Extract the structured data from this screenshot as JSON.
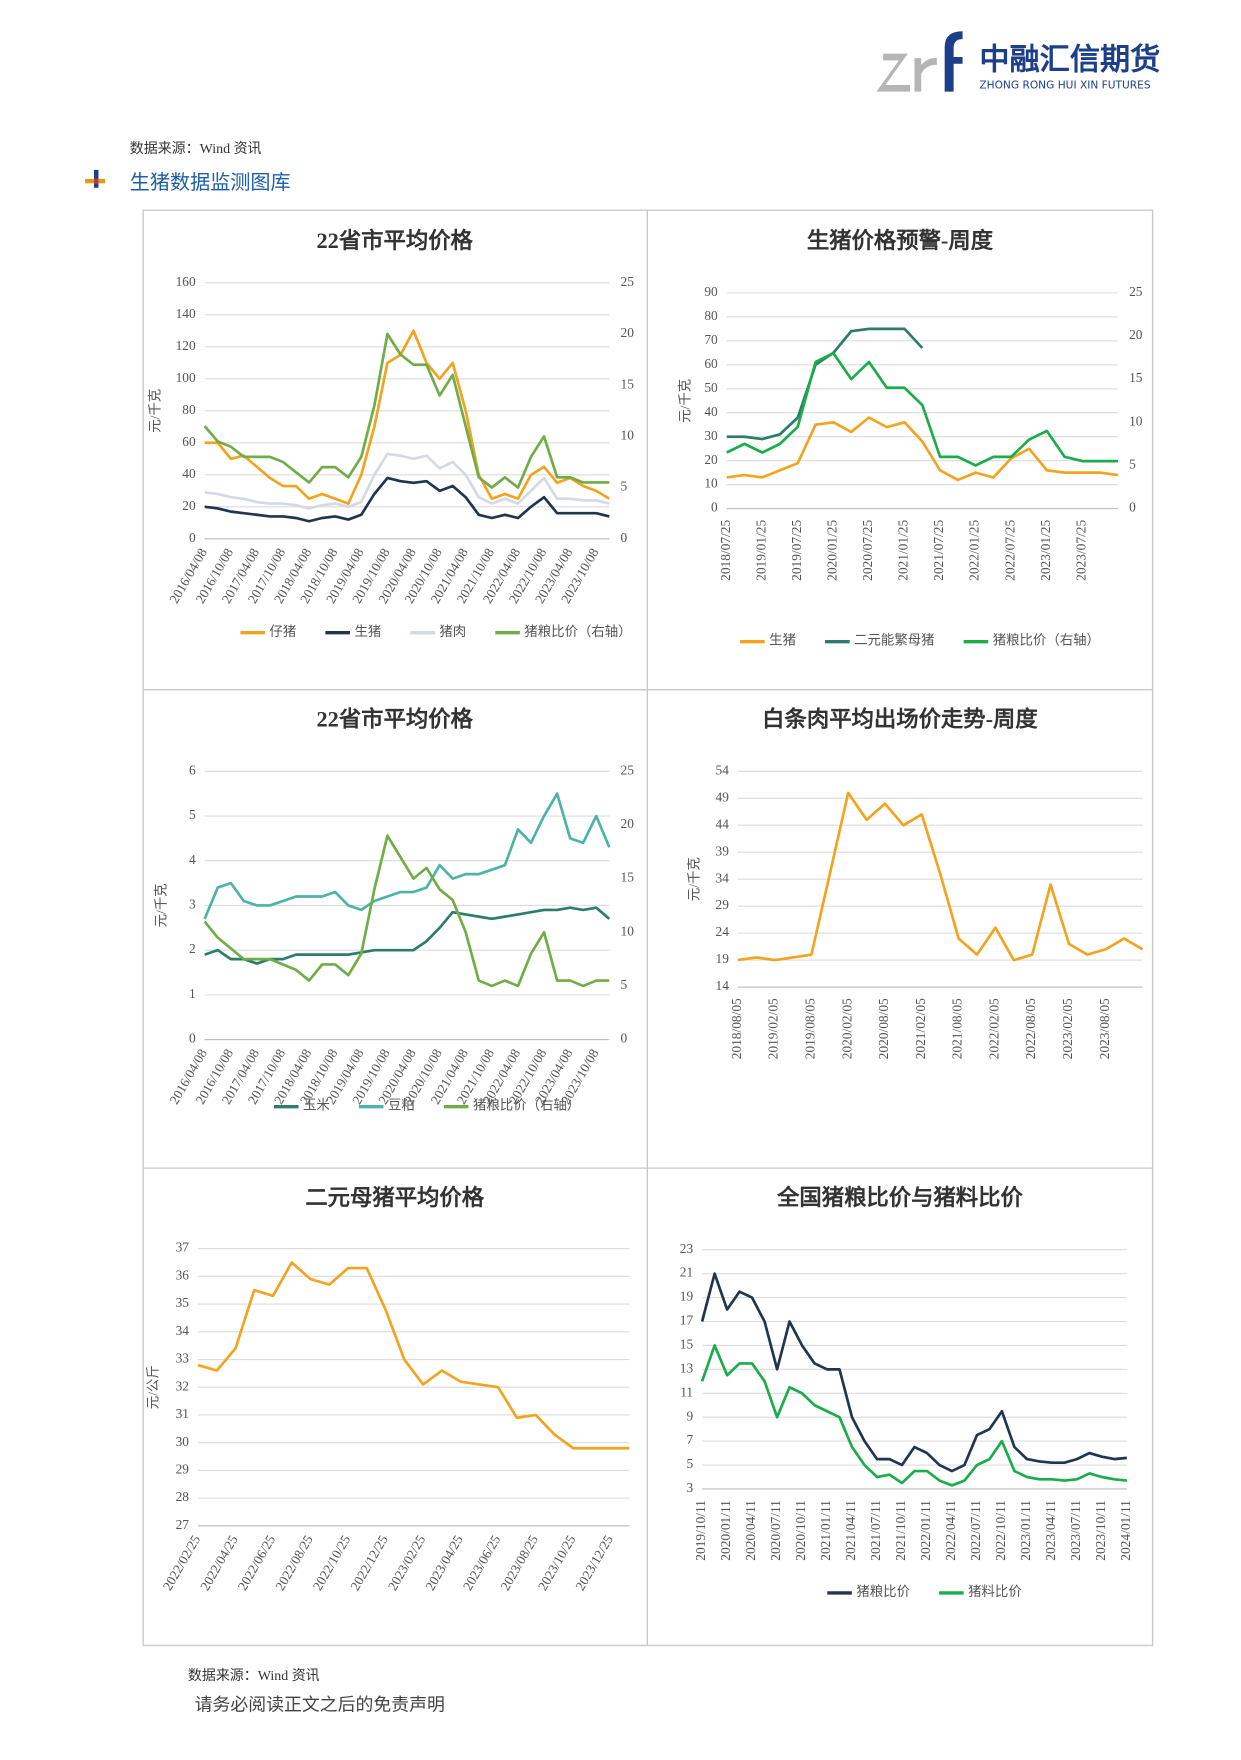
{
  "header": {
    "company": "中融汇信期货",
    "company_en": "ZHONG RONG HUI XIN FUTURES"
  },
  "source_top": "数据来源：Wind 资讯",
  "section_title": "生猪数据监测图库",
  "source_bottom": "数据来源：Wind 资讯",
  "footer": "请务必阅读正文之后的免责声明",
  "chart_data": [
    {
      "type": "line",
      "title": "22省市平均价格",
      "y_label": "元/千克",
      "grid": true,
      "categories": [
        "2016/04/08",
        null,
        "2016/10/08",
        null,
        "2017/04/08",
        null,
        "2017/10/08",
        null,
        "2018/04/08",
        null,
        "2018/10/08",
        null,
        "2019/04/08",
        null,
        "2019/10/08",
        null,
        "2020/04/08",
        null,
        "2020/10/08",
        null,
        "2021/04/08",
        null,
        "2021/10/08",
        null,
        "2022/04/08",
        null,
        "2022/10/08",
        null,
        "2023/04/08",
        null,
        "2023/10/08",
        null
      ],
      "ylim": [
        0,
        160
      ],
      "yticks": [
        0,
        20,
        40,
        60,
        80,
        100,
        120,
        140,
        160
      ],
      "y2lim": [
        0,
        25
      ],
      "y2ticks": [
        0,
        5,
        10,
        15,
        20,
        25
      ],
      "series": [
        {
          "name": "仔猪",
          "color": "#f2a31f",
          "values": [
            60,
            60,
            50,
            52,
            45,
            38,
            33,
            33,
            25,
            28,
            25,
            22,
            40,
            70,
            110,
            115,
            130,
            110,
            100,
            110,
            80,
            40,
            25,
            28,
            25,
            40,
            45,
            35,
            38,
            33,
            30,
            25
          ]
        },
        {
          "name": "生猪",
          "color": "#1f3550",
          "values": [
            20,
            19,
            17,
            16,
            15,
            14,
            14,
            13,
            11,
            13,
            14,
            12,
            15,
            28,
            38,
            36,
            35,
            36,
            30,
            33,
            26,
            15,
            13,
            15,
            13,
            20,
            26,
            16,
            16,
            16,
            16,
            14
          ]
        },
        {
          "name": "猪肉",
          "color": "#d3dae4",
          "values": [
            29,
            28,
            26,
            25,
            23,
            22,
            22,
            21,
            19,
            21,
            22,
            20,
            23,
            40,
            53,
            52,
            50,
            52,
            44,
            48,
            40,
            26,
            22,
            25,
            22,
            30,
            38,
            25,
            25,
            24,
            24,
            22
          ]
        },
        {
          "name": "猪粮比价（右轴）",
          "color": "#70ad47",
          "axis": "y2",
          "values": [
            11,
            9.5,
            9,
            8,
            8,
            8,
            7.5,
            6.5,
            5.5,
            7,
            7,
            6,
            8,
            13,
            20,
            18,
            17,
            17,
            14,
            16,
            11,
            6,
            5,
            6,
            5,
            8,
            10,
            6,
            6,
            5.5,
            5.5,
            5.5
          ]
        }
      ]
    },
    {
      "type": "line",
      "title": "生猪价格预警-周度",
      "y_label": "元/千克",
      "grid": true,
      "categories": [
        "2018/07/25",
        null,
        "2019/01/25",
        null,
        "2019/07/25",
        null,
        "2020/01/25",
        null,
        "2020/07/25",
        null,
        "2021/01/25",
        null,
        "2021/07/25",
        null,
        "2022/01/25",
        null,
        "2022/07/25",
        null,
        "2023/01/25",
        null,
        "2023/07/25",
        null,
        null
      ],
      "ylim": [
        0,
        90
      ],
      "yticks": [
        0,
        10,
        20,
        30,
        40,
        50,
        60,
        70,
        80,
        90
      ],
      "y2lim": [
        0,
        25
      ],
      "y2ticks": [
        0,
        5,
        10,
        15,
        20,
        25
      ],
      "series": [
        {
          "name": "生猪",
          "color": "#f2a31f",
          "values": [
            13,
            14,
            13,
            16,
            19,
            35,
            36,
            32,
            38,
            34,
            36,
            28,
            16,
            12,
            15,
            13,
            21,
            25,
            16,
            15,
            15,
            15,
            14
          ]
        },
        {
          "name": "二元能繁母猪",
          "color": "#2e7d6b",
          "values": [
            30,
            30,
            29,
            31,
            38,
            60,
            65,
            74,
            75,
            75,
            75,
            67,
            null,
            null,
            null,
            null,
            null,
            null,
            null,
            null,
            null,
            null,
            null
          ]
        },
        {
          "name": "猪粮比价（右轴）",
          "color": "#1aad4a",
          "axis": "y2",
          "values": [
            6.5,
            7.5,
            6.5,
            7.5,
            9.5,
            17,
            18,
            15,
            17,
            14,
            14,
            12,
            6,
            6,
            5,
            6,
            6,
            8,
            9,
            6,
            5.5,
            5.5,
            5.5
          ]
        }
      ]
    },
    {
      "type": "line",
      "title": "22省市平均价格",
      "y_label": "元/千克",
      "grid": true,
      "categories": [
        "2016/04/08",
        null,
        "2016/10/08",
        null,
        "2017/04/08",
        null,
        "2017/10/08",
        null,
        "2018/04/08",
        null,
        "2018/10/08",
        null,
        "2019/04/08",
        null,
        "2019/10/08",
        null,
        "2020/04/08",
        null,
        "2020/10/08",
        null,
        "2021/04/08",
        null,
        "2021/10/08",
        null,
        "2022/04/08",
        null,
        "2022/10/08",
        null,
        "2023/04/08",
        null,
        "2023/10/08",
        null
      ],
      "ylim": [
        0,
        6
      ],
      "yticks": [
        0,
        1,
        2,
        3,
        4,
        5,
        6
      ],
      "y2lim": [
        0,
        25
      ],
      "y2ticks": [
        0,
        5,
        10,
        15,
        20,
        25
      ],
      "series": [
        {
          "name": "玉米",
          "color": "#2e7d6b",
          "values": [
            1.9,
            2.0,
            1.8,
            1.8,
            1.7,
            1.8,
            1.8,
            1.9,
            1.9,
            1.9,
            1.9,
            1.9,
            1.95,
            2.0,
            2.0,
            2.0,
            2.0,
            2.2,
            2.5,
            2.85,
            2.8,
            2.75,
            2.7,
            2.75,
            2.8,
            2.85,
            2.9,
            2.9,
            2.95,
            2.9,
            2.95,
            2.7
          ]
        },
        {
          "name": "豆粕",
          "color": "#4db3a8",
          "values": [
            2.7,
            3.4,
            3.5,
            3.1,
            3.0,
            3.0,
            3.1,
            3.2,
            3.2,
            3.2,
            3.3,
            3.0,
            2.9,
            3.1,
            3.2,
            3.3,
            3.3,
            3.4,
            3.9,
            3.6,
            3.7,
            3.7,
            3.8,
            3.9,
            4.7,
            4.4,
            5.0,
            5.5,
            4.5,
            4.4,
            5.0,
            4.3
          ]
        },
        {
          "name": "猪粮比价（右轴）",
          "color": "#70ad47",
          "axis": "y2",
          "values": [
            11,
            9.5,
            8.5,
            7.5,
            7.5,
            7.5,
            7,
            6.5,
            5.5,
            7,
            7,
            6,
            8,
            14,
            19,
            17,
            15,
            16,
            14,
            13,
            10,
            5.5,
            5,
            5.5,
            5,
            8,
            10,
            5.5,
            5.5,
            5,
            5.5,
            5.5
          ]
        }
      ]
    },
    {
      "type": "line",
      "title": "白条肉平均出场价走势-周度",
      "y_label": "元/千克",
      "grid": true,
      "categories": [
        "2018/08/05",
        null,
        "2019/02/05",
        null,
        "2019/08/05",
        null,
        "2020/02/05",
        null,
        "2020/08/05",
        null,
        "2021/02/05",
        null,
        "2021/08/05",
        null,
        "2022/02/05",
        null,
        "2022/08/05",
        null,
        "2023/02/05",
        null,
        "2023/08/05",
        null,
        null
      ],
      "ylim": [
        14,
        54
      ],
      "yticks": [
        14,
        19,
        24,
        29,
        34,
        39,
        44,
        49,
        54
      ],
      "color": "#f2a31f",
      "values": [
        19,
        19.5,
        19,
        19.5,
        20,
        35,
        50,
        45,
        48,
        44,
        46,
        35,
        23,
        20,
        25,
        19,
        20,
        33,
        22,
        20,
        21,
        23,
        21
      ]
    },
    {
      "type": "line",
      "title": "二元母猪平均价格",
      "y_label": "元/公斤",
      "grid": true,
      "categories": [
        "2022/02/25",
        null,
        "2022/04/25",
        null,
        "2022/06/25",
        null,
        "2022/08/25",
        null,
        "2022/10/25",
        null,
        "2022/12/25",
        null,
        "2023/02/25",
        null,
        "2023/04/25",
        null,
        "2023/06/25",
        null,
        "2023/08/25",
        null,
        "2023/10/25",
        null,
        "2023/12/25",
        null
      ],
      "ylim": [
        27,
        37
      ],
      "yticks": [
        27,
        28,
        29,
        30,
        31,
        32,
        33,
        34,
        35,
        36,
        37
      ],
      "color": "#f2a31f",
      "values": [
        32.8,
        32.6,
        33.4,
        35.5,
        35.3,
        36.5,
        35.9,
        35.7,
        36.3,
        36.3,
        34.8,
        33.0,
        32.1,
        32.6,
        32.2,
        32.1,
        32.0,
        30.9,
        31.0,
        30.3,
        29.8,
        29.8,
        29.8,
        29.8
      ]
    },
    {
      "type": "line",
      "title": "全国猪粮比价与猪料比价",
      "grid": true,
      "categories": [
        "2019/10/11",
        null,
        "2020/01/11",
        null,
        "2020/04/11",
        null,
        "2020/07/11",
        null,
        "2020/10/11",
        null,
        "2021/01/11",
        null,
        "2021/04/11",
        null,
        "2021/07/11",
        null,
        "2021/10/11",
        null,
        "2022/01/11",
        null,
        "2022/04/11",
        null,
        "2022/07/11",
        null,
        "2022/10/11",
        null,
        "2023/01/11",
        null,
        "2023/04/11",
        null,
        "2023/07/11",
        null,
        "2023/10/11",
        null,
        "2024/01/11"
      ],
      "ylim": [
        3,
        23
      ],
      "yticks": [
        3,
        5,
        7,
        9,
        11,
        13,
        15,
        17,
        19,
        21,
        23
      ],
      "series": [
        {
          "name": "猪粮比价",
          "color": "#1f3550",
          "values": [
            17,
            21,
            18,
            19.5,
            19,
            17,
            13,
            17,
            15,
            13.5,
            13,
            13,
            9,
            7,
            5.5,
            5.5,
            5,
            6.5,
            6,
            5,
            4.5,
            5,
            7.5,
            8,
            9.5,
            6.5,
            5.5,
            5.3,
            5.2,
            5.2,
            5.5,
            6,
            5.7,
            5.5,
            5.6
          ]
        },
        {
          "name": "猪料比价",
          "color": "#1aad4a",
          "values": [
            12,
            15,
            12.5,
            13.5,
            13.5,
            12,
            9,
            11.5,
            11,
            10,
            9.5,
            9,
            6.5,
            5,
            4,
            4.2,
            3.5,
            4.5,
            4.5,
            3.7,
            3.3,
            3.7,
            5,
            5.5,
            7,
            4.5,
            4,
            3.8,
            3.8,
            3.7,
            3.8,
            4.3,
            4,
            3.8,
            3.7
          ]
        }
      ]
    }
  ]
}
